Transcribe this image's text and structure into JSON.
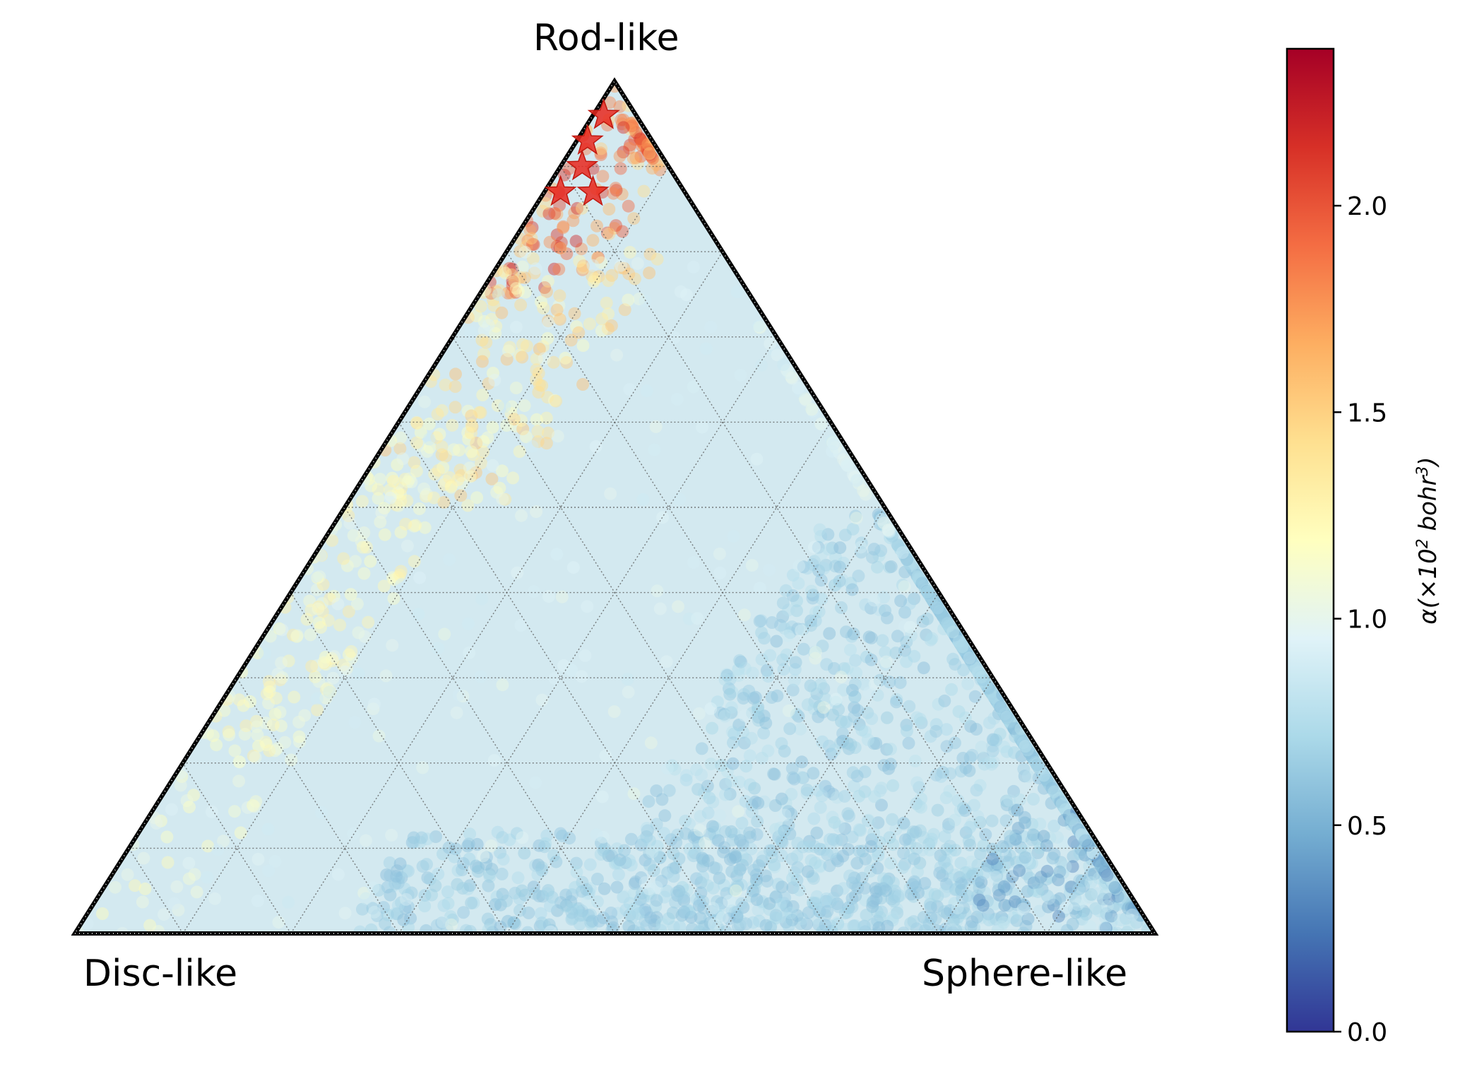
{
  "chart_data": {
    "type": "scatter",
    "subtype": "ternary",
    "corner_labels": {
      "top": "Rod-like",
      "bottom_left": "Disc-like",
      "bottom_right": "Sphere-like"
    },
    "grid": true,
    "grid_divisions": 10,
    "colorbar": {
      "label_main": "α(×10",
      "label_exp1": "2",
      "label_unit": " bohr",
      "label_exp2": "3",
      "label_close": ")",
      "colormap": "RdYlBu_r",
      "range": [
        0.0,
        2.38
      ],
      "ticks": [
        {
          "value": 0.0,
          "label": "0.0"
        },
        {
          "value": 0.5,
          "label": "0.5"
        },
        {
          "value": 1.0,
          "label": "1.0"
        },
        {
          "value": 1.5,
          "label": "1.5"
        },
        {
          "value": 2.0,
          "label": "2.0"
        }
      ],
      "position": "right"
    },
    "colors": {
      "stops": [
        "#313695",
        "#4575b4",
        "#74add1",
        "#abd9e9",
        "#e0f3f8",
        "#ffffbf",
        "#fee090",
        "#fdae61",
        "#f46d43",
        "#d73027",
        "#a50026"
      ],
      "star": "#e8281f",
      "frame": "#000000",
      "background_fill": "#d3e9f0"
    },
    "highlighted_points": [
      {
        "marker": "star",
        "rod": 0.96,
        "disc": 0.03,
        "sphere": 0.01,
        "value": 2.35
      },
      {
        "marker": "star",
        "rod": 0.93,
        "disc": 0.06,
        "sphere": 0.01,
        "value": 2.3
      },
      {
        "marker": "star",
        "rod": 0.9,
        "disc": 0.08,
        "sphere": 0.02,
        "value": 2.28
      },
      {
        "marker": "star",
        "rod": 0.87,
        "disc": 0.115,
        "sphere": 0.015,
        "value": 2.25
      },
      {
        "marker": "star",
        "rod": 0.87,
        "disc": 0.085,
        "sphere": 0.045,
        "value": 2.25
      }
    ],
    "distribution_regions": [
      {
        "rod_range": [
          0.75,
          1.0
        ],
        "sphere_range": [
          0.0,
          0.1
        ],
        "value_range": [
          1.4,
          2.2
        ],
        "count": 140
      },
      {
        "rod_range": [
          0.5,
          0.8
        ],
        "sphere_range": [
          0.0,
          0.15
        ],
        "value_range": [
          1.1,
          1.6
        ],
        "count": 180
      },
      {
        "rod_range": [
          0.2,
          0.6
        ],
        "sphere_range": [
          0.0,
          0.1
        ],
        "value_range": [
          1.05,
          1.35
        ],
        "count": 150
      },
      {
        "rod_range": [
          0.0,
          0.4
        ],
        "sphere_range": [
          0.0,
          0.1
        ],
        "value_range": [
          1.0,
          1.25
        ],
        "count": 60
      },
      {
        "rod_range": [
          0.0,
          0.5
        ],
        "sphere_range": [
          0.45,
          1.0
        ],
        "value_range": [
          0.55,
          0.8
        ],
        "count": 1400
      },
      {
        "rod_range": [
          0.0,
          0.12
        ],
        "sphere_range": [
          0.25,
          0.85
        ],
        "value_range": [
          0.55,
          0.75
        ],
        "count": 500
      },
      {
        "rod_range": [
          0.0,
          0.15
        ],
        "sphere_range": [
          0.8,
          1.0
        ],
        "value_range": [
          0.3,
          0.9
        ],
        "count": 200
      },
      {
        "rod_range": [
          0.0,
          0.8
        ],
        "sphere_range": [
          0.0,
          0.6
        ],
        "value_range": [
          0.85,
          1.05
        ],
        "count": 250
      }
    ]
  }
}
